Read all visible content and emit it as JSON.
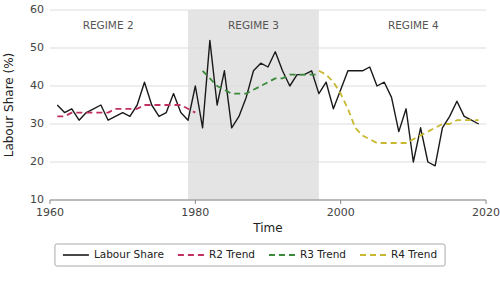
{
  "chart_data": {
    "type": "line",
    "xlabel": "Time",
    "ylabel": "Labour Share (%)",
    "xlim": [
      1960,
      2020
    ],
    "ylim": [
      10,
      60
    ],
    "xticks": [
      1960,
      1980,
      2000,
      2020
    ],
    "yticks": [
      10,
      20,
      30,
      40,
      50,
      60
    ],
    "grid": true,
    "legend": "bottom",
    "series": [
      {
        "name": "Labour Share",
        "color": "#1a1a1a",
        "line_style": "solid",
        "x": [
          1961,
          1962,
          1963,
          1964,
          1965,
          1966,
          1967,
          1968,
          1969,
          1970,
          1971,
          1972,
          1973,
          1974,
          1975,
          1976,
          1977,
          1978,
          1979,
          1980,
          1981,
          1982,
          1983,
          1984,
          1985,
          1986,
          1987,
          1988,
          1989,
          1990,
          1991,
          1992,
          1993,
          1994,
          1995,
          1996,
          1997,
          1998,
          1999,
          2000,
          2001,
          2002,
          2003,
          2004,
          2005,
          2006,
          2007,
          2008,
          2009,
          2010,
          2011,
          2012,
          2013,
          2014,
          2015,
          2016,
          2017,
          2018,
          2019
        ],
        "values": [
          35,
          33,
          34,
          31,
          33,
          34,
          35,
          31,
          32,
          33,
          32,
          35,
          41,
          35,
          32,
          33,
          38,
          33,
          31,
          40,
          29,
          52,
          35,
          44,
          29,
          32,
          37,
          44,
          46,
          45,
          49,
          44,
          40,
          43,
          43,
          44,
          38,
          41,
          34,
          39,
          44,
          44,
          44,
          45,
          40,
          41,
          37,
          28,
          34,
          20,
          29,
          20,
          19,
          29,
          32,
          36,
          32,
          31,
          30
        ]
      },
      {
        "name": "R2 Trend",
        "color": "#c03060",
        "line_style": "dashed",
        "x": [
          1961,
          1962,
          1963,
          1964,
          1965,
          1966,
          1967,
          1968,
          1969,
          1970,
          1971,
          1972,
          1973,
          1974,
          1975,
          1976,
          1977,
          1978,
          1979,
          1980
        ],
        "values": [
          32,
          32,
          33,
          33,
          33,
          33,
          33,
          33,
          34,
          34,
          34,
          34,
          35,
          35,
          35,
          35,
          35,
          35,
          34,
          33
        ]
      },
      {
        "name": "R3 Trend",
        "color": "#3a8a3a",
        "line_style": "dashed",
        "x": [
          1981,
          1982,
          1983,
          1984,
          1985,
          1986,
          1987,
          1988,
          1989,
          1990,
          1991,
          1992,
          1993,
          1994,
          1995,
          1996,
          1997
        ],
        "values": [
          44,
          42,
          40,
          39,
          38,
          38,
          38,
          39,
          40,
          41,
          42,
          42,
          43,
          43,
          43,
          43,
          43
        ]
      },
      {
        "name": "R4 Trend",
        "color": "#c8b830",
        "line_style": "dashed",
        "x": [
          1997,
          1998,
          1999,
          2000,
          2001,
          2002,
          2003,
          2004,
          2005,
          2006,
          2007,
          2008,
          2009,
          2010,
          2011,
          2012,
          2013,
          2014,
          2015,
          2016,
          2017,
          2018,
          2019
        ],
        "values": [
          44,
          43,
          41,
          38,
          34,
          29,
          27,
          26,
          25,
          25,
          25,
          25,
          25,
          26,
          27,
          28,
          29,
          30,
          30,
          31,
          31,
          31,
          31
        ]
      }
    ],
    "spans": [
      {
        "x0": 1979,
        "x1": 1997,
        "color": "#e4e4e4"
      }
    ],
    "annotations": [
      {
        "text": "REGIME 2",
        "x": 1968,
        "y": 57
      },
      {
        "text": "REGIME 3",
        "x": 1988,
        "y": 57
      },
      {
        "text": "REGIME 4",
        "x": 2010,
        "y": 57
      }
    ]
  }
}
